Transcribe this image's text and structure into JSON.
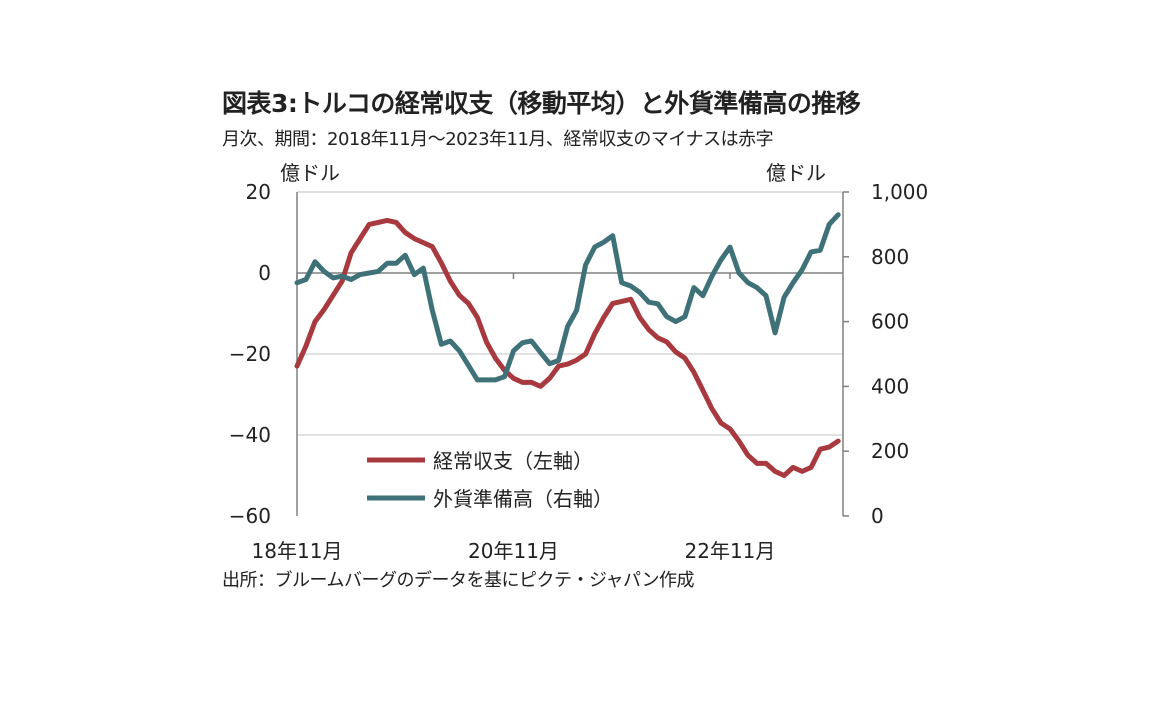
{
  "chart_data": {
    "type": "line",
    "title": "図表3:トルコの経常収支（移動平均）と外貨準備高の推移",
    "subtitle": "月次、期間：2018年11月～2023年11月、経常収支のマイナスは赤字",
    "left_unit": "億ドル",
    "right_unit": "億ドル",
    "ylim_left": [
      -60,
      20
    ],
    "yticks_left": [
      "20",
      "0",
      "-20",
      "-40",
      "-60"
    ],
    "ylim_right": [
      0,
      1000
    ],
    "yticks_right": [
      "1,000",
      "800",
      "600",
      "400",
      "200",
      "0"
    ],
    "x_start": "2018-11",
    "x_end": "2023-11",
    "xtick_labels": [
      "18年11月",
      "20年11月",
      "22年11月"
    ],
    "grid": true,
    "legend": "center-bottom",
    "series": [
      {
        "name": "経常収支（左軸）",
        "axis": "left",
        "color": "#a8393e",
        "values": [
          -23,
          -18,
          -12,
          -9,
          -5.5,
          -2,
          5,
          8.5,
          12,
          12.5,
          13,
          12.5,
          10,
          8.5,
          7.5,
          6.5,
          2.5,
          -2,
          -5.5,
          -7.5,
          -11,
          -17,
          -21,
          -24,
          -26,
          -27,
          -27,
          -28,
          -26,
          -23,
          -22.5,
          -21.5,
          -20,
          -15,
          -11,
          -7.5,
          -7,
          -6.5,
          -11,
          -14,
          -16,
          -17,
          -19.5,
          -21,
          -24.5,
          -29,
          -33.5,
          -37,
          -38.5,
          -41.5,
          -45,
          -47,
          -47,
          -49,
          -50,
          -48,
          -49,
          -48,
          -43.5,
          -43,
          -41.5
        ]
      },
      {
        "name": "外貨準備高（右軸）",
        "axis": "right",
        "color": "#3f7178",
        "values": [
          720,
          730,
          785,
          755,
          735,
          740,
          730,
          745,
          750,
          755,
          780,
          780,
          805,
          745,
          765,
          635,
          530,
          540,
          510,
          465,
          420,
          420,
          420,
          430,
          510,
          535,
          540,
          505,
          470,
          480,
          585,
          635,
          775,
          830,
          845,
          865,
          720,
          710,
          690,
          660,
          655,
          615,
          600,
          615,
          705,
          680,
          740,
          790,
          830,
          750,
          720,
          705,
          680,
          565,
          675,
          720,
          760,
          815,
          820,
          900,
          930
        ]
      }
    ]
  },
  "source": "出所：ブルームバーグのデータを基にピクテ・ジャパン作成"
}
